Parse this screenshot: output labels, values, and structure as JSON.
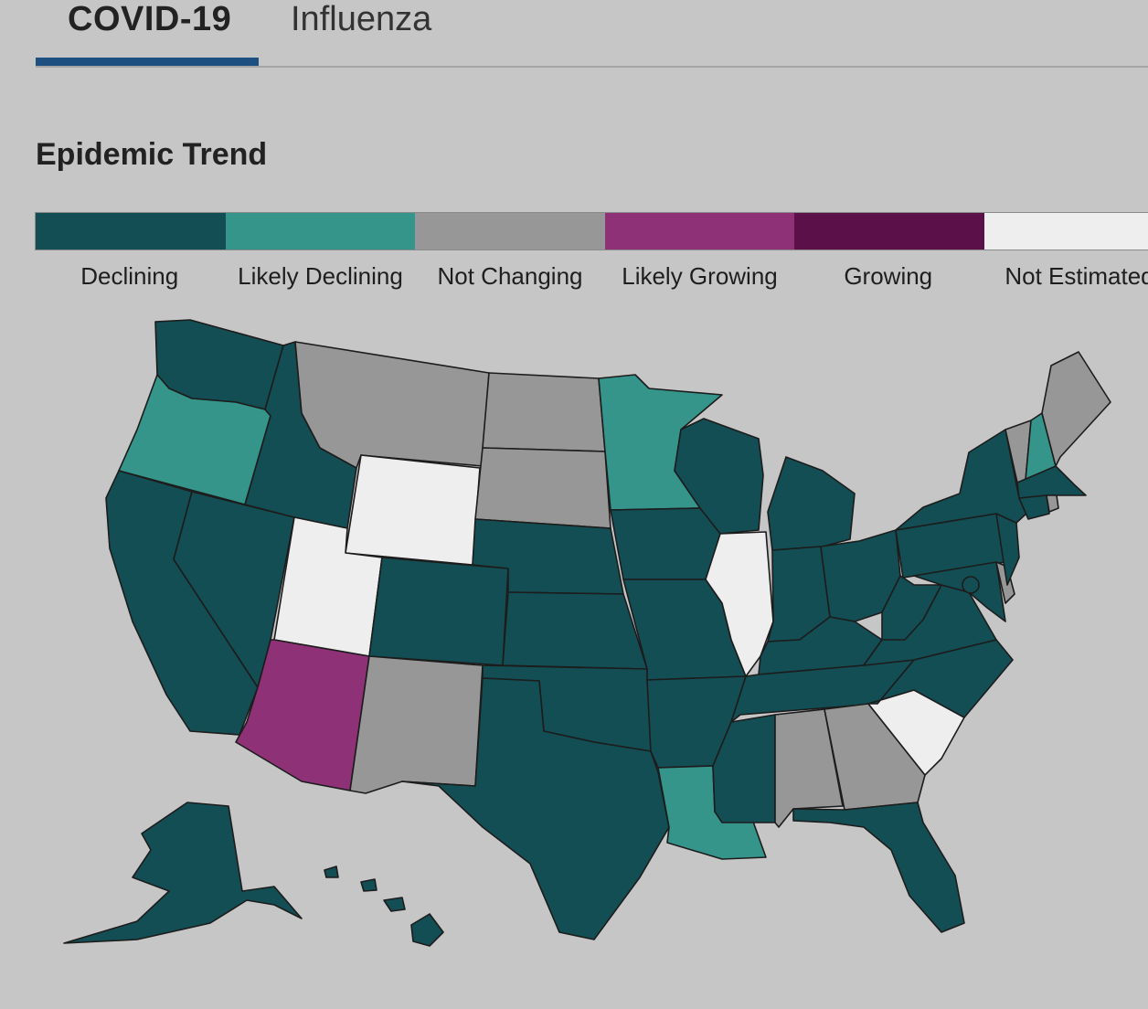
{
  "tabs": [
    {
      "label": "COVID-19",
      "active": true
    },
    {
      "label": "Influenza",
      "active": false
    }
  ],
  "section_title": "Epidemic Trend",
  "legend": [
    {
      "key": "declining",
      "label": "Declining",
      "color": "#134e54"
    },
    {
      "key": "likely_declining",
      "label": "Likely Declining",
      "color": "#35958b"
    },
    {
      "key": "not_changing",
      "label": "Not Changing",
      "color": "#979797"
    },
    {
      "key": "likely_growing",
      "label": "Likely Growing",
      "color": "#8e3177"
    },
    {
      "key": "growing",
      "label": "Growing",
      "color": "#5c104a"
    },
    {
      "key": "not_estimated",
      "label": "Not Estimated",
      "color": "#eeeeee"
    }
  ],
  "states": {
    "WA": "declining",
    "OR": "likely_declining",
    "CA": "declining",
    "NV": "declining",
    "ID": "declining",
    "MT": "not_changing",
    "WY": "not_estimated",
    "UT": "not_estimated",
    "AZ": "likely_growing",
    "CO": "declining",
    "NM": "not_changing",
    "ND": "not_changing",
    "SD": "not_changing",
    "NE": "declining",
    "KS": "declining",
    "OK": "declining",
    "TX": "declining",
    "MN": "likely_declining",
    "IA": "declining",
    "MO": "declining",
    "AR": "declining",
    "LA": "likely_declining",
    "WI": "declining",
    "IL": "not_estimated",
    "MI": "declining",
    "IN": "declining",
    "OH": "declining",
    "KY": "declining",
    "TN": "declining",
    "MS": "declining",
    "AL": "not_changing",
    "GA": "not_changing",
    "FL": "declining",
    "SC": "not_estimated",
    "NC": "declining",
    "VA": "declining",
    "WV": "declining",
    "MD": "declining",
    "DE": "not_changing",
    "PA": "declining",
    "NJ": "declining",
    "NY": "declining",
    "CT": "declining",
    "RI": "not_changing",
    "MA": "declining",
    "VT": "not_changing",
    "NH": "likely_declining",
    "ME": "not_changing",
    "DC": "declining",
    "AK": "declining",
    "HI": "declining"
  }
}
